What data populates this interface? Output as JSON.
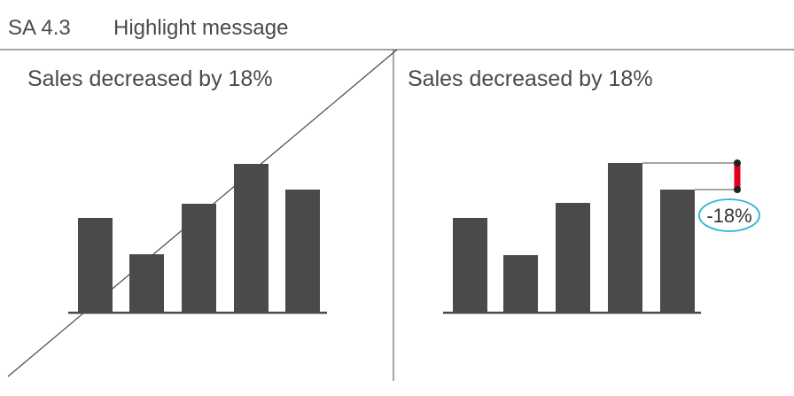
{
  "header": {
    "figure_id": "SA 4.3",
    "title": "Highlight message"
  },
  "colors": {
    "bar": "#4a4a4a",
    "axis": "#4a4a4a",
    "text": "#4a4a4a",
    "highlight": "#e0001b",
    "callout_outline": "#2cb4d4",
    "guide_line": "#4a4a4a"
  },
  "chart_data": [
    {
      "type": "bar",
      "panel": "left",
      "title": "Sales decreased by 18%",
      "categories": [
        "",
        "",
        "",
        "",
        ""
      ],
      "values": [
        107,
        66,
        123,
        168,
        139
      ],
      "xlabel": "",
      "ylabel": "",
      "ylim": [
        0,
        180
      ],
      "grid": false,
      "annotation": "diagonal line crossing the chart"
    },
    {
      "type": "bar",
      "panel": "right",
      "title": "Sales decreased by 18%",
      "categories": [
        "",
        "",
        "",
        "",
        ""
      ],
      "values": [
        107,
        65,
        124,
        169,
        139
      ],
      "xlabel": "",
      "ylabel": "",
      "ylim": [
        0,
        180
      ],
      "grid": false,
      "annotation": "-18%"
    }
  ]
}
